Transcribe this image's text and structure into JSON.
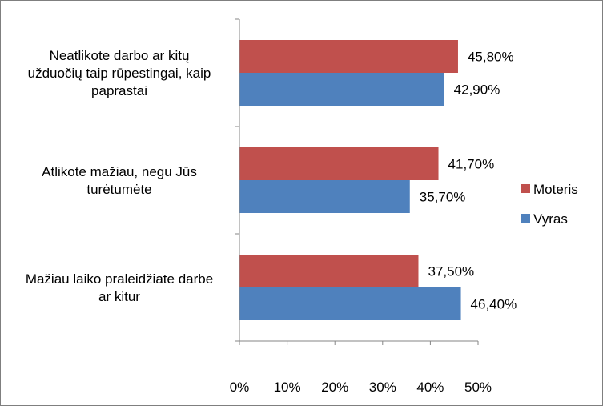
{
  "chart_data": {
    "type": "bar",
    "orientation": "horizontal",
    "categories": [
      [
        "Neatlikote darbo ar kitų",
        "užduočių taip rūpestingai, kaip",
        "paprastai"
      ],
      [
        "Atlikote mažiau, negu Jūs",
        "turėtumėte"
      ],
      [
        "Mažiau laiko praleidžiate darbe",
        "ar kitur"
      ]
    ],
    "series": [
      {
        "name": "Moteris",
        "color": "#c0504d",
        "values": [
          45.8,
          41.7,
          37.5
        ],
        "labels": [
          "45,80%",
          "41,70%",
          "37,50%"
        ]
      },
      {
        "name": "Vyras",
        "color": "#4f81bd",
        "values": [
          42.9,
          35.7,
          46.4
        ],
        "labels": [
          "42,90%",
          "35,70%",
          "46,40%"
        ]
      }
    ],
    "xlim": [
      0,
      50
    ],
    "xticks": [
      "0%",
      "10%",
      "20%",
      "30%",
      "40%",
      "50%"
    ],
    "grid": false,
    "legend_position": "right"
  }
}
